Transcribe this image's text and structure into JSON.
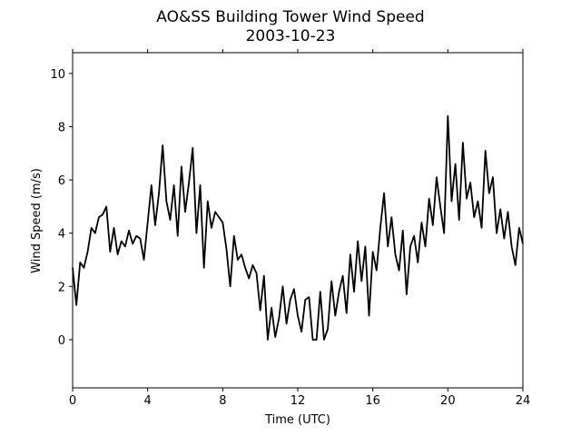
{
  "chart_data": {
    "type": "line",
    "title": "AO&SS Building Tower Wind Speed",
    "subtitle": "2003-10-23",
    "x_label": "Time (UTC)",
    "y_label": "Wind Speed (m/s)",
    "x": [
      0,
      0.2,
      0.4,
      0.6,
      0.8,
      1,
      1.2,
      1.4,
      1.6,
      1.8,
      2,
      2.2,
      2.4,
      2.6,
      2.8,
      3,
      3.2,
      3.4,
      3.6,
      3.8,
      4,
      4.2,
      4.4,
      4.6,
      4.8,
      5,
      5.2,
      5.4,
      5.6,
      5.8,
      6,
      6.2,
      6.4,
      6.6,
      6.8,
      7,
      7.2,
      7.4,
      7.6,
      7.8,
      8,
      8.2,
      8.4,
      8.6,
      8.8,
      9,
      9.2,
      9.4,
      9.6,
      9.8,
      10,
      10.2,
      10.4,
      10.6,
      10.8,
      11,
      11.2,
      11.4,
      11.6,
      11.8,
      12,
      12.2,
      12.4,
      12.6,
      12.8,
      13,
      13.2,
      13.4,
      13.6,
      13.8,
      14,
      14.2,
      14.4,
      14.6,
      14.8,
      15,
      15.2,
      15.4,
      15.6,
      15.8,
      16,
      16.2,
      16.4,
      16.6,
      16.8,
      17,
      17.2,
      17.4,
      17.6,
      17.8,
      18,
      18.2,
      18.4,
      18.6,
      18.8,
      19,
      19.2,
      19.4,
      19.6,
      19.8,
      20,
      20.2,
      20.4,
      20.6,
      20.8,
      21,
      21.2,
      21.4,
      21.6,
      21.8,
      22,
      22.2,
      22.4,
      22.6,
      22.8,
      23,
      23.2,
      23.4,
      23.6,
      23.8,
      24
    ],
    "series": [
      {
        "color": "#000000",
        "values": [
          2.7,
          1.3,
          2.9,
          2.7,
          3.3,
          4.2,
          4.0,
          4.6,
          4.7,
          5.0,
          3.3,
          4.2,
          3.2,
          3.7,
          3.5,
          4.1,
          3.6,
          3.9,
          3.8,
          3.0,
          4.4,
          5.8,
          4.3,
          5.5,
          7.3,
          5.2,
          4.5,
          5.8,
          3.9,
          6.5,
          4.8,
          5.9,
          7.2,
          4.0,
          5.8,
          2.7,
          5.2,
          4.2,
          4.8,
          4.6,
          4.4,
          3.4,
          2.0,
          3.9,
          3.0,
          3.2,
          2.7,
          2.3,
          2.8,
          2.5,
          1.1,
          2.4,
          0.0,
          1.2,
          0.1,
          0.8,
          2.0,
          0.6,
          1.5,
          1.9,
          0.9,
          0.3,
          1.5,
          1.6,
          0.0,
          0.0,
          1.8,
          0.0,
          0.4,
          2.2,
          0.9,
          1.8,
          2.4,
          1.0,
          3.2,
          1.8,
          3.7,
          2.2,
          3.5,
          0.9,
          3.3,
          2.6,
          4.2,
          5.5,
          3.5,
          4.6,
          3.2,
          2.6,
          4.1,
          1.7,
          3.5,
          3.9,
          2.9,
          4.4,
          3.5,
          5.3,
          4.3,
          6.1,
          5.0,
          4.0,
          8.4,
          5.2,
          6.6,
          4.5,
          7.4,
          5.3,
          5.9,
          4.6,
          5.2,
          4.2,
          7.1,
          5.5,
          6.1,
          4.0,
          4.9,
          3.8,
          4.8,
          3.5,
          2.8,
          4.2,
          3.6
        ]
      }
    ],
    "xlim": [
      0,
      24
    ],
    "xticks": [
      0,
      4,
      8,
      12,
      16,
      20,
      24
    ],
    "ylim": [
      -1.81,
      10.78
    ],
    "yticks": [
      0,
      2,
      4,
      6,
      8,
      10
    ],
    "grid": false
  }
}
